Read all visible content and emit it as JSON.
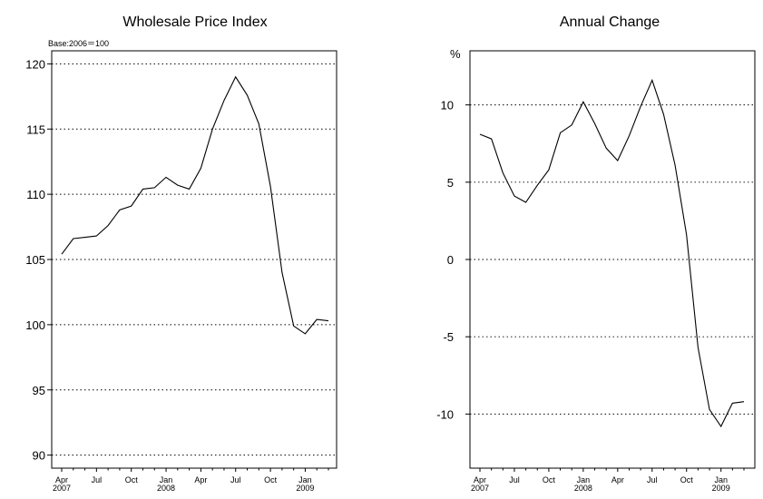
{
  "chart_data": [
    {
      "type": "line",
      "title": "Wholesale Price Index",
      "note": "Base:2006＝100",
      "unit_label": "",
      "ylim": [
        89,
        121
      ],
      "yticks": [
        90,
        95,
        100,
        105,
        110,
        115,
        120
      ],
      "grid_y": [
        90,
        95,
        100,
        105,
        110,
        115,
        120
      ],
      "grid": "horizontal-dotted",
      "x": [
        "2007-04",
        "2007-05",
        "2007-06",
        "2007-07",
        "2007-08",
        "2007-09",
        "2007-10",
        "2007-11",
        "2007-12",
        "2008-01",
        "2008-02",
        "2008-03",
        "2008-04",
        "2008-05",
        "2008-06",
        "2008-07",
        "2008-08",
        "2008-09",
        "2008-10",
        "2008-11",
        "2008-12",
        "2009-01",
        "2009-02",
        "2009-03"
      ],
      "values": [
        105.4,
        106.6,
        106.7,
        106.8,
        107.6,
        108.8,
        109.1,
        110.4,
        110.5,
        111.3,
        110.7,
        110.4,
        112.0,
        115.0,
        117.2,
        119.0,
        117.6,
        115.4,
        110.6,
        104.0,
        99.9,
        99.3,
        100.4,
        100.3
      ],
      "x_tick_labels": [
        {
          "label": "Apr",
          "year": "2007"
        },
        {
          "label": "Jul",
          "year": ""
        },
        {
          "label": "Oct",
          "year": ""
        },
        {
          "label": "Jan",
          "year": "2008"
        },
        {
          "label": "Apr",
          "year": ""
        },
        {
          "label": "Jul",
          "year": ""
        },
        {
          "label": "Oct",
          "year": ""
        },
        {
          "label": "Jan",
          "year": "2009"
        }
      ]
    },
    {
      "type": "line",
      "title": "Annual Change",
      "note": "",
      "unit_label": "%",
      "ylim": [
        -13.5,
        13.5
      ],
      "yticks": [
        -10,
        -5,
        0,
        5,
        10
      ],
      "grid_y": [
        -10,
        -5,
        0,
        5,
        10
      ],
      "grid": "horizontal-dotted",
      "x": [
        "2007-04",
        "2007-05",
        "2007-06",
        "2007-07",
        "2007-08",
        "2007-09",
        "2007-10",
        "2007-11",
        "2007-12",
        "2008-01",
        "2008-02",
        "2008-03",
        "2008-04",
        "2008-05",
        "2008-06",
        "2008-07",
        "2008-08",
        "2008-09",
        "2008-10",
        "2008-11",
        "2008-12",
        "2009-01",
        "2009-02",
        "2009-03"
      ],
      "values": [
        8.1,
        7.8,
        5.6,
        4.1,
        3.7,
        4.8,
        5.8,
        8.2,
        8.7,
        10.2,
        8.8,
        7.2,
        6.4,
        8.0,
        9.9,
        11.6,
        9.4,
        6.1,
        1.6,
        -5.7,
        -9.7,
        -10.8,
        -9.3,
        -9.2
      ],
      "x_tick_labels": [
        {
          "label": "Apr",
          "year": "2007"
        },
        {
          "label": "Jul",
          "year": ""
        },
        {
          "label": "Oct",
          "year": ""
        },
        {
          "label": "Jan",
          "year": "2008"
        },
        {
          "label": "Apr",
          "year": ""
        },
        {
          "label": "Jul",
          "year": ""
        },
        {
          "label": "Oct",
          "year": ""
        },
        {
          "label": "Jan",
          "year": "2009"
        }
      ]
    }
  ]
}
